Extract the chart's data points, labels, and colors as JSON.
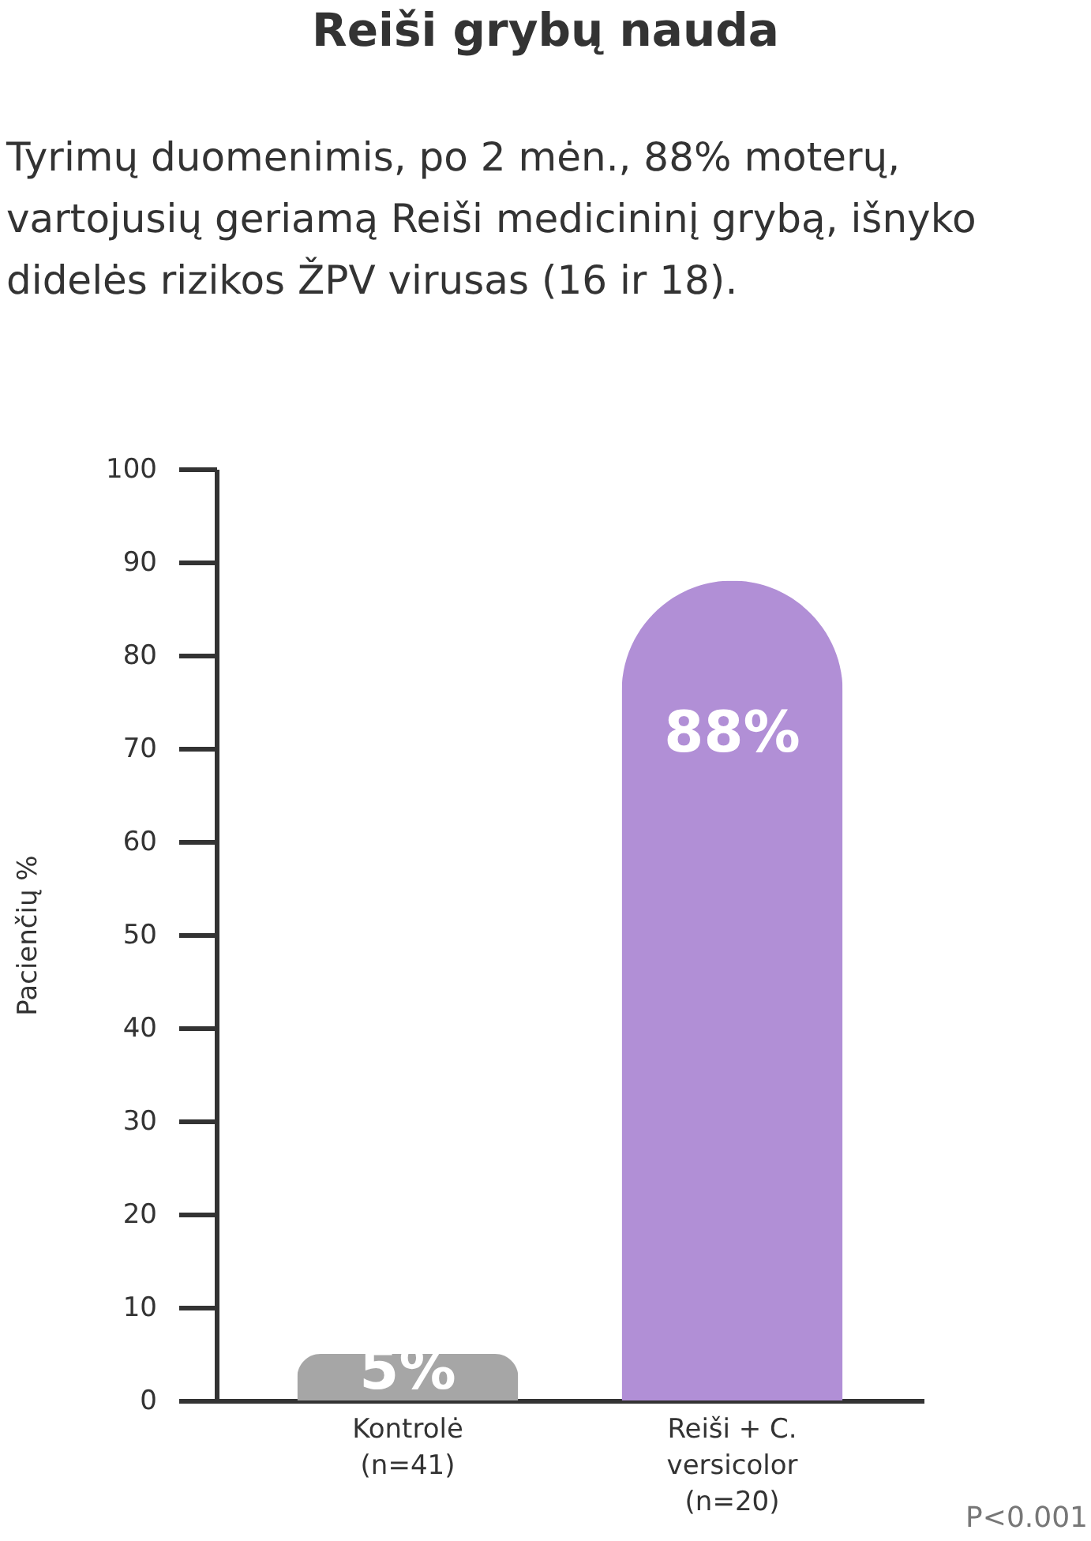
{
  "chart_data": {
    "type": "bar",
    "title": "Reiši grybų nauda",
    "subtitle": "Tyrimų duomenimis, po 2 mėn., 88% moterų, vartojusių geriamą Reiši medicininį grybą, išnyko didelės rizikos ŽPV virusas (16 ir 18).",
    "ylabel": "Pacienčių %",
    "categories": [
      "Kontrolė\n(n=41)",
      "Reiši + C.\nversicolor\n(n=20)"
    ],
    "values": [
      5,
      88
    ],
    "colors": [
      "#a6a6a6",
      "#b18fd6"
    ],
    "value_labels": [
      "5%",
      "88%"
    ],
    "ylim": [
      0,
      100
    ],
    "yticks": [
      0,
      10,
      20,
      30,
      40,
      50,
      60,
      70,
      80,
      90,
      100
    ],
    "grid": false,
    "annotations": [
      "P<0.001"
    ]
  }
}
